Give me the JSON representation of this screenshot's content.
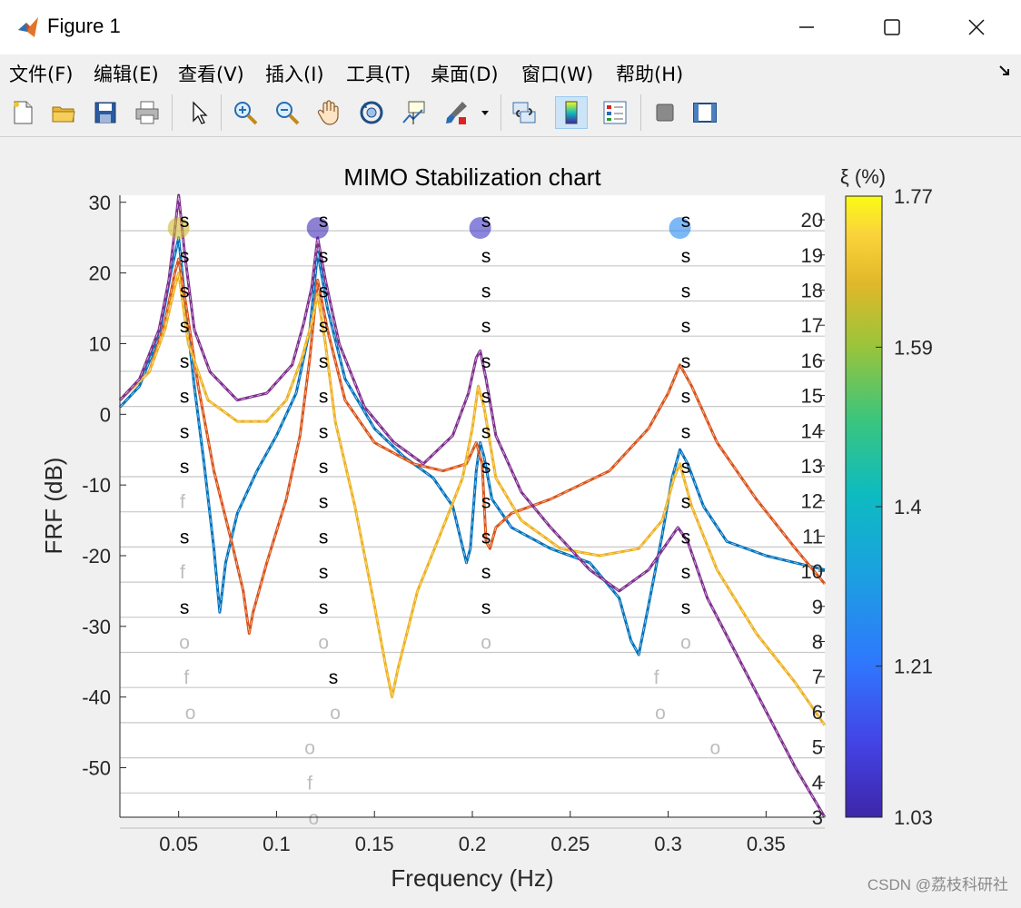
{
  "window": {
    "title": "Figure 1",
    "minimize_glyph": "—",
    "maximize_glyph": "☐",
    "close_glyph": "✕"
  },
  "menu": [
    {
      "label": "文件(F)"
    },
    {
      "label": "编辑(E)"
    },
    {
      "label": "查看(V)"
    },
    {
      "label": "插入(I)"
    },
    {
      "label": "工具(T)"
    },
    {
      "label": "桌面(D)"
    },
    {
      "label": "窗口(W)"
    },
    {
      "label": "帮助(H)"
    }
  ],
  "toolbar": {
    "icons": [
      "new-file-icon",
      "open-folder-icon",
      "save-icon",
      "print-icon",
      "select-arrow-icon",
      "zoom-in-icon",
      "zoom-out-icon",
      "pan-hand-icon",
      "rotate-3d-icon",
      "data-cursor-icon",
      "brush-icon",
      "link-plot-icon",
      "colorbar-icon",
      "legend-icon",
      "hide-plot-tools-icon",
      "show-plot-tools-icon"
    ]
  },
  "colors": {
    "series_blue": "#0072bd",
    "series_orange": "#d95319",
    "series_yellow": "#edb120",
    "series_purple": "#7e2f8e",
    "grid": "#c8c8c8",
    "marker_s": "#000000",
    "marker_unstable": "#bdbdbd"
  },
  "chart_data": {
    "type": "line",
    "title": "MIMO Stabilization chart",
    "xlabel": "Frequency (Hz)",
    "ylabel": "FRF (dB)",
    "xlim": [
      0.02,
      0.38
    ],
    "ylim": [
      -57,
      31
    ],
    "x_ticks": [
      0.05,
      0.1,
      0.15,
      0.2,
      0.25,
      0.3,
      0.35
    ],
    "x_tick_labels": [
      "0.05",
      "0.1",
      "0.15",
      "0.2",
      "0.25",
      "0.3",
      "0.35"
    ],
    "y_ticks": [
      30,
      20,
      10,
      0,
      -10,
      -20,
      -30,
      -40,
      -50
    ],
    "y_tick_labels": [
      "30",
      "20",
      "10",
      "0",
      "-10",
      "-20",
      "-30",
      "-40",
      "-50"
    ],
    "model_order_ticks": [
      20,
      19,
      18,
      17,
      16,
      15,
      14,
      13,
      12,
      11,
      10,
      9,
      8,
      7,
      6,
      5,
      4,
      3
    ],
    "model_order_tick_labels": [
      "20",
      "19",
      "18",
      "17",
      "16",
      "15",
      "14",
      "13",
      "12",
      "11",
      "10",
      "9",
      "8",
      "7",
      "6",
      "5",
      "4",
      "3"
    ],
    "model_order_range": [
      3,
      20.7
    ],
    "series": [
      {
        "color": "#0072bd",
        "points": [
          [
            0.02,
            1
          ],
          [
            0.03,
            4
          ],
          [
            0.04,
            11
          ],
          [
            0.046,
            20
          ],
          [
            0.05,
            25
          ],
          [
            0.054,
            14
          ],
          [
            0.058,
            4
          ],
          [
            0.063,
            -7
          ],
          [
            0.068,
            -19
          ],
          [
            0.071,
            -28
          ],
          [
            0.074,
            -21
          ],
          [
            0.08,
            -14
          ],
          [
            0.09,
            -8
          ],
          [
            0.1,
            -3
          ],
          [
            0.11,
            3
          ],
          [
            0.117,
            12
          ],
          [
            0.121,
            23
          ],
          [
            0.126,
            15
          ],
          [
            0.135,
            5
          ],
          [
            0.15,
            -2
          ],
          [
            0.165,
            -6
          ],
          [
            0.18,
            -9
          ],
          [
            0.19,
            -13
          ],
          [
            0.197,
            -21
          ],
          [
            0.199,
            -19
          ],
          [
            0.202,
            -8
          ],
          [
            0.204,
            -4
          ],
          [
            0.206,
            -6
          ],
          [
            0.21,
            -12
          ],
          [
            0.22,
            -16
          ],
          [
            0.24,
            -19
          ],
          [
            0.26,
            -21
          ],
          [
            0.275,
            -26
          ],
          [
            0.281,
            -32
          ],
          [
            0.285,
            -34
          ],
          [
            0.29,
            -27
          ],
          [
            0.297,
            -17
          ],
          [
            0.302,
            -9
          ],
          [
            0.306,
            -5
          ],
          [
            0.31,
            -7
          ],
          [
            0.318,
            -13
          ],
          [
            0.33,
            -18
          ],
          [
            0.35,
            -20
          ],
          [
            0.38,
            -22
          ]
        ]
      },
      {
        "color": "#d95319",
        "points": [
          [
            0.02,
            2
          ],
          [
            0.035,
            6
          ],
          [
            0.043,
            13
          ],
          [
            0.048,
            20
          ],
          [
            0.05,
            22
          ],
          [
            0.054,
            15
          ],
          [
            0.06,
            4
          ],
          [
            0.068,
            -8
          ],
          [
            0.077,
            -18
          ],
          [
            0.083,
            -25
          ],
          [
            0.086,
            -31
          ],
          [
            0.088,
            -28
          ],
          [
            0.095,
            -21
          ],
          [
            0.105,
            -12
          ],
          [
            0.112,
            -3
          ],
          [
            0.117,
            8
          ],
          [
            0.121,
            19
          ],
          [
            0.126,
            12
          ],
          [
            0.135,
            2
          ],
          [
            0.15,
            -4
          ],
          [
            0.17,
            -7
          ],
          [
            0.185,
            -8
          ],
          [
            0.197,
            -7
          ],
          [
            0.202,
            -4
          ],
          [
            0.205,
            -7
          ],
          [
            0.207,
            -18
          ],
          [
            0.209,
            -19
          ],
          [
            0.212,
            -16
          ],
          [
            0.22,
            -14
          ],
          [
            0.24,
            -12
          ],
          [
            0.27,
            -8
          ],
          [
            0.29,
            -2
          ],
          [
            0.3,
            3
          ],
          [
            0.306,
            7
          ],
          [
            0.312,
            4
          ],
          [
            0.325,
            -4
          ],
          [
            0.345,
            -12
          ],
          [
            0.365,
            -19
          ],
          [
            0.38,
            -24
          ]
        ]
      },
      {
        "color": "#edb120",
        "points": [
          [
            0.02,
            2
          ],
          [
            0.035,
            6
          ],
          [
            0.043,
            12
          ],
          [
            0.048,
            18
          ],
          [
            0.05,
            20
          ],
          [
            0.055,
            10
          ],
          [
            0.065,
            2
          ],
          [
            0.08,
            -1
          ],
          [
            0.095,
            -1
          ],
          [
            0.105,
            2
          ],
          [
            0.113,
            8
          ],
          [
            0.118,
            13
          ],
          [
            0.121,
            17
          ],
          [
            0.125,
            10
          ],
          [
            0.13,
            -1
          ],
          [
            0.14,
            -13
          ],
          [
            0.15,
            -27
          ],
          [
            0.156,
            -36
          ],
          [
            0.159,
            -40
          ],
          [
            0.162,
            -36
          ],
          [
            0.172,
            -25
          ],
          [
            0.185,
            -16
          ],
          [
            0.195,
            -9
          ],
          [
            0.2,
            -2
          ],
          [
            0.203,
            4
          ],
          [
            0.206,
            1
          ],
          [
            0.212,
            -9
          ],
          [
            0.225,
            -15
          ],
          [
            0.245,
            -19
          ],
          [
            0.265,
            -20
          ],
          [
            0.285,
            -19
          ],
          [
            0.297,
            -15
          ],
          [
            0.303,
            -9
          ],
          [
            0.306,
            -7
          ],
          [
            0.312,
            -13
          ],
          [
            0.325,
            -22
          ],
          [
            0.345,
            -31
          ],
          [
            0.365,
            -38
          ],
          [
            0.38,
            -44
          ]
        ]
      },
      {
        "color": "#7e2f8e",
        "points": [
          [
            0.02,
            2
          ],
          [
            0.03,
            5
          ],
          [
            0.04,
            12
          ],
          [
            0.045,
            19
          ],
          [
            0.048,
            26
          ],
          [
            0.05,
            31
          ],
          [
            0.053,
            23
          ],
          [
            0.058,
            12
          ],
          [
            0.066,
            6
          ],
          [
            0.08,
            2
          ],
          [
            0.095,
            3
          ],
          [
            0.108,
            7
          ],
          [
            0.114,
            13
          ],
          [
            0.118,
            18
          ],
          [
            0.121,
            25
          ],
          [
            0.125,
            19
          ],
          [
            0.132,
            10
          ],
          [
            0.145,
            1
          ],
          [
            0.16,
            -4
          ],
          [
            0.175,
            -7
          ],
          [
            0.19,
            -3
          ],
          [
            0.198,
            3
          ],
          [
            0.202,
            8
          ],
          [
            0.204,
            9
          ],
          [
            0.207,
            5
          ],
          [
            0.212,
            -3
          ],
          [
            0.225,
            -11
          ],
          [
            0.24,
            -16
          ],
          [
            0.26,
            -22
          ],
          [
            0.275,
            -25
          ],
          [
            0.29,
            -22
          ],
          [
            0.3,
            -18
          ],
          [
            0.305,
            -16
          ],
          [
            0.31,
            -18
          ],
          [
            0.32,
            -26
          ],
          [
            0.335,
            -34
          ],
          [
            0.35,
            -42
          ],
          [
            0.365,
            -50
          ],
          [
            0.38,
            -57
          ]
        ]
      }
    ],
    "stabilization_markers": [
      {
        "symbol": "s",
        "x": 0.053,
        "orders": [
          20,
          19,
          18,
          17,
          16,
          15,
          14,
          13,
          11,
          9
        ]
      },
      {
        "symbol": "f",
        "x": 0.052,
        "orders": [
          12,
          10
        ]
      },
      {
        "symbol": "o",
        "x": 0.053,
        "orders": [
          8
        ]
      },
      {
        "symbol": "f",
        "x": 0.054,
        "orders": [
          7
        ]
      },
      {
        "symbol": "o",
        "x": 0.056,
        "orders": [
          6
        ]
      },
      {
        "symbol": "s",
        "x": 0.124,
        "orders": [
          20,
          19,
          18,
          17,
          16,
          15,
          14,
          13,
          12,
          11,
          10,
          9
        ]
      },
      {
        "symbol": "o",
        "x": 0.124,
        "orders": [
          8
        ]
      },
      {
        "symbol": "s",
        "x": 0.129,
        "orders": [
          7
        ]
      },
      {
        "symbol": "o",
        "x": 0.13,
        "orders": [
          6
        ]
      },
      {
        "symbol": "o",
        "x": 0.117,
        "orders": [
          5
        ]
      },
      {
        "symbol": "f",
        "x": 0.117,
        "orders": [
          4
        ]
      },
      {
        "symbol": "o",
        "x": 0.119,
        "orders": [
          3
        ]
      },
      {
        "symbol": "s",
        "x": 0.207,
        "orders": [
          20,
          19,
          18,
          17,
          16,
          15,
          14,
          13,
          12,
          11,
          10,
          9
        ]
      },
      {
        "symbol": "o",
        "x": 0.207,
        "orders": [
          8
        ]
      },
      {
        "symbol": "s",
        "x": 0.309,
        "orders": [
          20,
          19,
          18,
          17,
          16,
          15,
          14,
          13,
          12,
          11,
          10,
          9
        ]
      },
      {
        "symbol": "o",
        "x": 0.309,
        "orders": [
          8
        ]
      },
      {
        "symbol": "f",
        "x": 0.294,
        "orders": [
          7
        ]
      },
      {
        "symbol": "o",
        "x": 0.296,
        "orders": [
          6
        ]
      },
      {
        "symbol": "o",
        "x": 0.324,
        "orders": [
          5
        ]
      }
    ],
    "damping_circles": [
      {
        "x": 0.05,
        "order": 20,
        "xi": 1.65
      },
      {
        "x": 0.121,
        "order": 20,
        "xi": 1.05
      },
      {
        "x": 0.204,
        "order": 20,
        "xi": 1.07
      },
      {
        "x": 0.306,
        "order": 20,
        "xi": 1.26
      }
    ],
    "colorbar": {
      "label": "ξ (%)",
      "range": [
        1.03,
        1.77
      ],
      "tick_labels": [
        "1.77",
        "1.59",
        "1.4",
        "1.21",
        "1.03"
      ],
      "ticks": [
        1.77,
        1.59,
        1.4,
        1.21,
        1.03
      ],
      "colormap": "parula"
    }
  },
  "watermark": "CSDN @荔枝科研社"
}
